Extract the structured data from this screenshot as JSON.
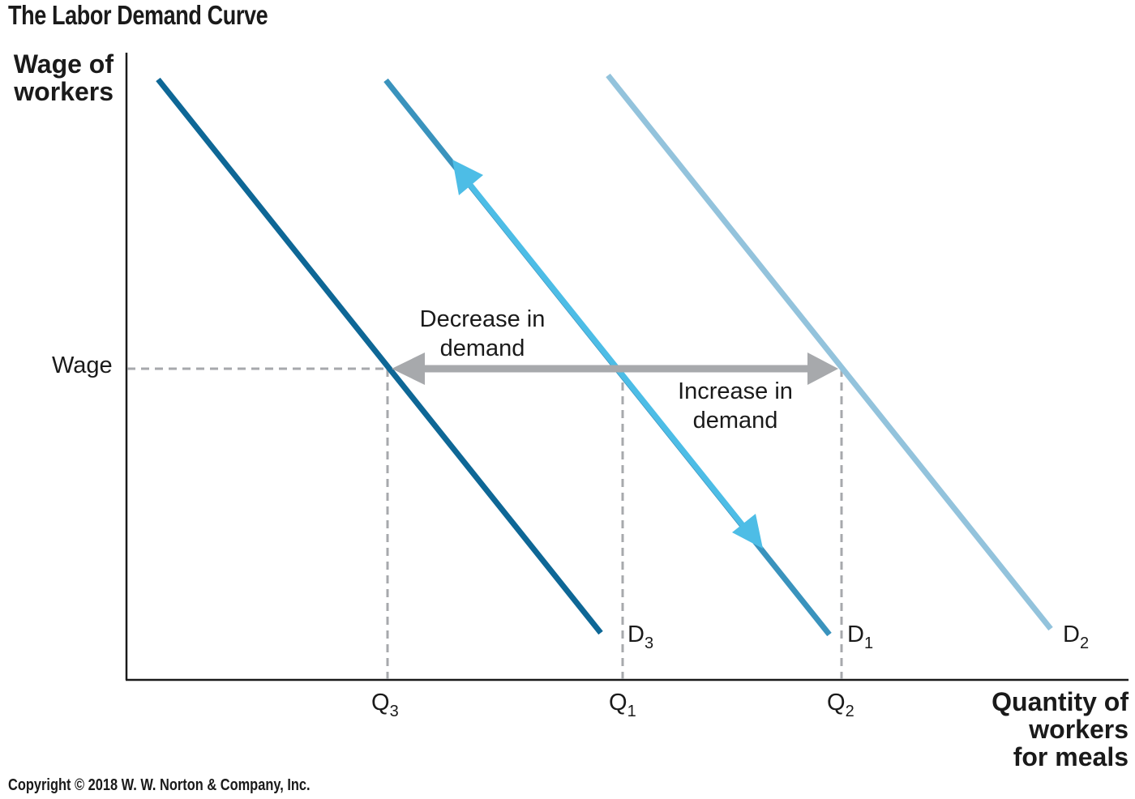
{
  "title": "The Labor Demand Curve",
  "y_axis": {
    "line1": "Wage of",
    "line2": "workers"
  },
  "x_axis": {
    "line1": "Quantity of",
    "line2": "workers",
    "line3": "for meals"
  },
  "wage_label": "Wage",
  "quantities": [
    {
      "letter": "Q",
      "sub": "3"
    },
    {
      "letter": "Q",
      "sub": "1"
    },
    {
      "letter": "Q",
      "sub": "2"
    }
  ],
  "curves": [
    {
      "letter": "D",
      "sub": "3",
      "color": "#0e6796"
    },
    {
      "letter": "D",
      "sub": "1",
      "color": "#3a93bd"
    },
    {
      "letter": "D",
      "sub": "2",
      "color": "#93c3dc"
    }
  ],
  "annotations": {
    "decrease": {
      "line1": "Decrease in",
      "line2": "demand"
    },
    "increase": {
      "line1": "Increase in",
      "line2": "demand"
    }
  },
  "colors": {
    "movement_arrow": "#4dbde6",
    "shift_arrow": "#a7a9ac",
    "guide_lines": "#a7a9ac",
    "axis": "#1a1a1a"
  },
  "copyright": "Copyright © 2018 W. W. Norton & Company, Inc."
}
